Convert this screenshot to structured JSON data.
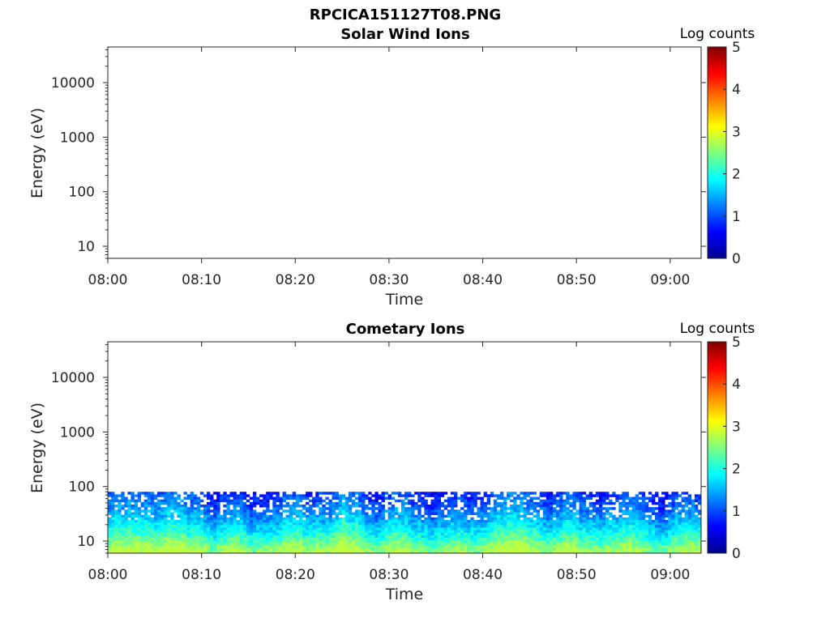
{
  "figure_title": "RPCICA151127T08.PNG",
  "chart_data": [
    {
      "type": "heatmap",
      "title": "Solar Wind Ions",
      "xlabel": "Time",
      "ylabel": "Energy (eV)",
      "x_tick_labels": [
        "08:00",
        "08:10",
        "08:20",
        "08:30",
        "08:40",
        "08:50",
        "09:00"
      ],
      "x_ticks_minutes": [
        0,
        10,
        20,
        30,
        40,
        50,
        60
      ],
      "x_range_minutes": [
        0,
        63.3
      ],
      "y_scale": "log",
      "y_range": [
        6,
        45000
      ],
      "y_tick_labels": [
        "10",
        "100",
        "1000",
        "10000"
      ],
      "y_ticks": [
        10,
        100,
        1000,
        10000
      ],
      "colorbar": {
        "label": "Log counts",
        "range": [
          0,
          5
        ],
        "ticks": [
          "0",
          "1",
          "2",
          "3",
          "4",
          "5"
        ],
        "colormap": "jet"
      },
      "data": "empty (no counts recorded)"
    },
    {
      "type": "heatmap",
      "title": "Cometary Ions",
      "xlabel": "Time",
      "ylabel": "Energy (eV)",
      "x_tick_labels": [
        "08:00",
        "08:10",
        "08:20",
        "08:30",
        "08:40",
        "08:50",
        "09:00"
      ],
      "x_ticks_minutes": [
        0,
        10,
        20,
        30,
        40,
        50,
        60
      ],
      "x_range_minutes": [
        0,
        63.3
      ],
      "y_scale": "log",
      "y_range": [
        6,
        45000
      ],
      "y_tick_labels": [
        "10",
        "100",
        "1000",
        "10000"
      ],
      "y_ticks": [
        10,
        100,
        1000,
        10000
      ],
      "colorbar": {
        "label": "Log counts",
        "range": [
          0,
          5
        ],
        "ticks": [
          "0",
          "1",
          "2",
          "3",
          "4",
          "5"
        ],
        "colormap": "jet"
      },
      "energy_band_eV": [
        6,
        80
      ],
      "log_counts_by_energy": [
        {
          "energy_eV": 70,
          "log_counts": 0.6
        },
        {
          "energy_eV": 40,
          "log_counts": 0.9
        },
        {
          "energy_eV": 25,
          "log_counts": 1.2
        },
        {
          "energy_eV": 15,
          "log_counts": 1.6
        },
        {
          "energy_eV": 9,
          "log_counts": 2.1
        },
        {
          "energy_eV": 7,
          "log_counts": 2.4
        }
      ],
      "max_log_counts": 2.8
    }
  ]
}
